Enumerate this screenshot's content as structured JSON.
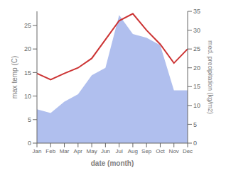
{
  "chart_data": {
    "type": "line",
    "categories": [
      "Jan",
      "Feb",
      "Mar",
      "Apr",
      "May",
      "Jun",
      "Jul",
      "Aug",
      "Sep",
      "Oct",
      "Nov",
      "Dec"
    ],
    "xlabel": "date (month)",
    "ylabel": "max temp (C)",
    "y2label": "med. precipitation (kg/m2)",
    "ylim": [
      0,
      28
    ],
    "yticks": [
      0,
      5,
      10,
      15,
      20,
      25
    ],
    "y2lim": [
      0,
      35
    ],
    "y2ticks": [
      0,
      5,
      10,
      15,
      20,
      25,
      30,
      35
    ],
    "grid": false,
    "series": [
      {
        "type": "area",
        "axis": "y2",
        "color": "#b0bfee",
        "values": [
          9.0,
          8.0,
          11.0,
          13.0,
          18.0,
          20.0,
          34.0,
          29.0,
          28.0,
          26.0,
          14.0,
          14.0
        ]
      },
      {
        "type": "line",
        "color": "#cc3333",
        "values": [
          14.8,
          13.5,
          14.8,
          16.0,
          18.0,
          22.0,
          26.0,
          27.5,
          24.0,
          21.0,
          17.0,
          20.0
        ]
      }
    ]
  }
}
